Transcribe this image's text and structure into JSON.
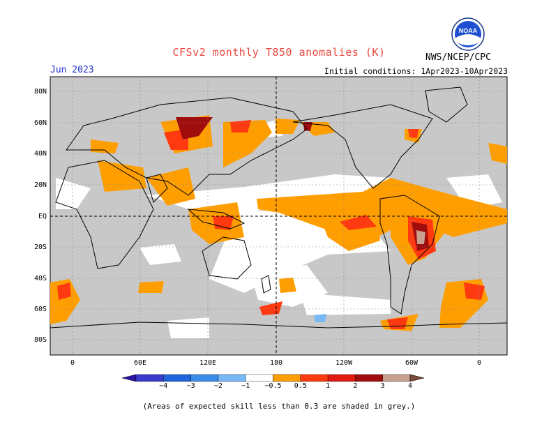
{
  "header": {
    "title": "CFSv2 monthly T850 anomalies (K)",
    "month": "Jun 2023",
    "initial_conditions": "Initial conditions: 1Apr2023-10Apr2023",
    "agency": "NWS/NCEP/CPC",
    "logo_text": "NOAA"
  },
  "map": {
    "lat_labels": [
      "80N",
      "60N",
      "40N",
      "20N",
      "EQ",
      "20S",
      "40S",
      "60S",
      "80S"
    ],
    "lon_labels": [
      "0",
      "60E",
      "120E",
      "180",
      "120W",
      "60W",
      "0"
    ]
  },
  "colorbar": {
    "tick_labels": [
      "−4",
      "−3",
      "−2",
      "−1",
      "−0.5",
      "0.5",
      "1",
      "2",
      "3",
      "4"
    ],
    "colors": [
      "#2b14a4",
      "#3a3acc",
      "#1e64d8",
      "#3a8ee8",
      "#78b8f4",
      "#ffffff",
      "#ff9e00",
      "#ff3a10",
      "#e01a10",
      "#a00d0d",
      "#c8a090",
      "#7a4a3a"
    ]
  },
  "footnote": "(Areas of expected skill less than 0.3 are shaded in grey.)"
}
